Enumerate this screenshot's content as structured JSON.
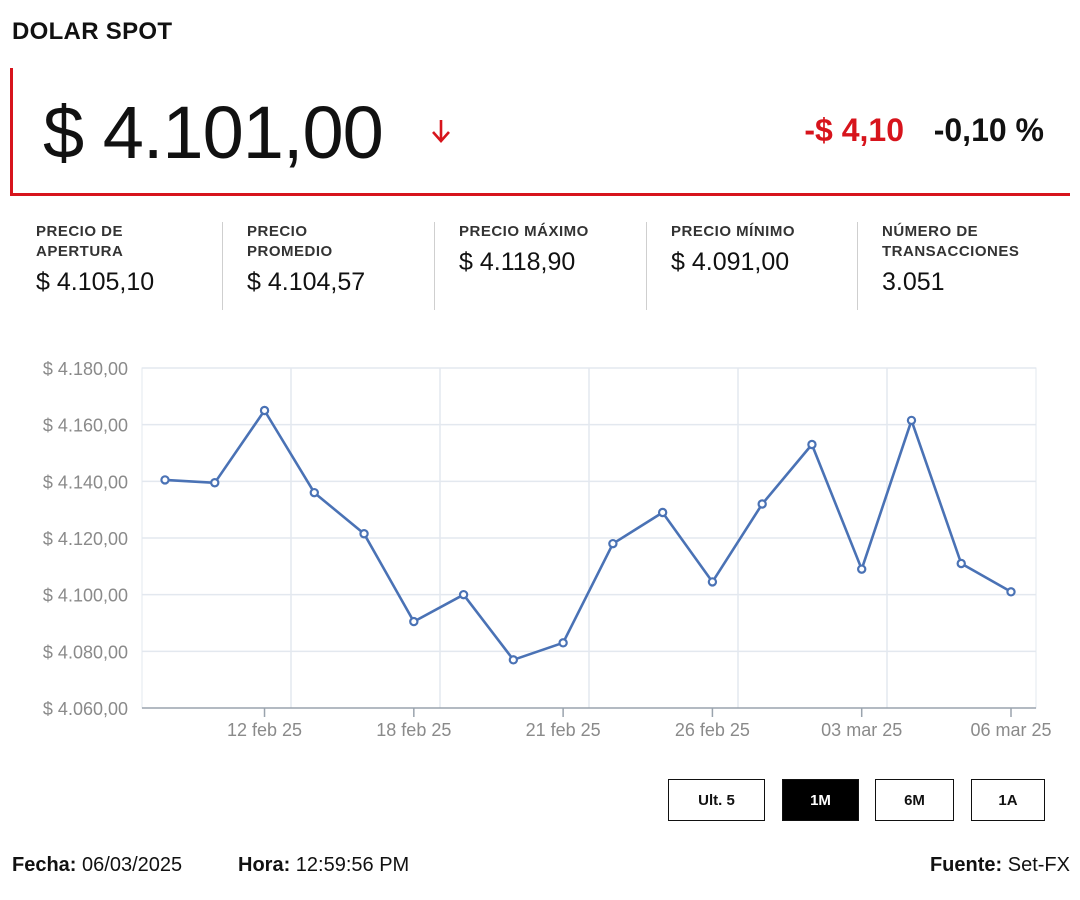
{
  "header": {
    "title": "DOLAR SPOT"
  },
  "quote": {
    "price": "$ 4.101,00",
    "direction_icon": "arrow-down-icon",
    "change": "-$ 4,10",
    "change_pct": "-0,10 %",
    "accent_color": "#d7141c"
  },
  "stats": [
    {
      "label_line1": "PRECIO DE",
      "label_line2": "APERTURA",
      "value": "$ 4.105,10"
    },
    {
      "label_line1": "PRECIO",
      "label_line2": "PROMEDIO",
      "value": "$ 4.104,57"
    },
    {
      "label_line1": "PRECIO MÁXIMO",
      "label_line2": "",
      "value": "$ 4.118,90"
    },
    {
      "label_line1": "PRECIO MÍNIMO",
      "label_line2": "",
      "value": "$ 4.091,00"
    },
    {
      "label_line1": "NÚMERO DE",
      "label_line2": "TRANSACCIONES",
      "value": "3.051"
    }
  ],
  "chart_data": {
    "type": "line",
    "title": "",
    "xlabel": "",
    "ylabel": "",
    "ylim": [
      4060,
      4180
    ],
    "y_ticks": [
      4060,
      4080,
      4100,
      4120,
      4140,
      4160,
      4180
    ],
    "y_tick_labels": [
      "$ 4.060,00",
      "$ 4.080,00",
      "$ 4.100,00",
      "$ 4.120,00",
      "$ 4.140,00",
      "$ 4.160,00",
      "$ 4.180,00"
    ],
    "x_tick_labels": [
      "12 feb 25",
      "18 feb 25",
      "21 feb 25",
      "26 feb 25",
      "03 mar 25",
      "06 mar 25"
    ],
    "x_tick_index": [
      2,
      5,
      8,
      11,
      14,
      17
    ],
    "grid": true,
    "line_color": "#4a72b5",
    "series": [
      {
        "values": [
          4140.5,
          4139.5,
          4165,
          4136,
          4121.5,
          4090.5,
          4100,
          4077,
          4083,
          4118,
          4129,
          4104.5,
          4132,
          4153,
          4109,
          4161.5,
          4111,
          4101
        ]
      }
    ]
  },
  "range_buttons": [
    {
      "label": "Ult. 5",
      "active": false
    },
    {
      "label": "1M",
      "active": true
    },
    {
      "label": "6M",
      "active": false
    },
    {
      "label": "1A",
      "active": false
    }
  ],
  "footer": {
    "date_label": "Fecha:",
    "date_value": "06/03/2025",
    "time_label": "Hora:",
    "time_value": "12:59:56 PM",
    "source_label": "Fuente:",
    "source_value": "Set-FX"
  }
}
